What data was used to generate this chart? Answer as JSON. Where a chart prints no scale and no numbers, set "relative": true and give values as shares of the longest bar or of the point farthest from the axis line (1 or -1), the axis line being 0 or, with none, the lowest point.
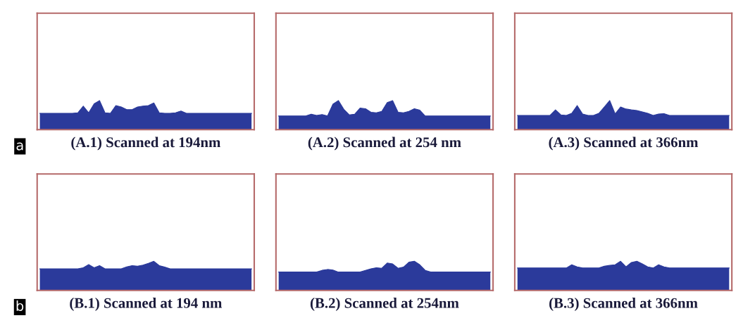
{
  "chart_data": [
    {
      "type": "area",
      "title": "(A.1) Scanned at 194nm",
      "relative": true,
      "tick_labels": false,
      "annotations": [
        "a"
      ],
      "categories": [
        null,
        null,
        null,
        null,
        null,
        null,
        null,
        null,
        null,
        null,
        null,
        null,
        null,
        null,
        null,
        null,
        null,
        null,
        null,
        null,
        null,
        null,
        null,
        null,
        null,
        null,
        null,
        null,
        null,
        null,
        null,
        null,
        null,
        null,
        null,
        null,
        null,
        null,
        null,
        null
      ],
      "series": [
        {
          "color": "#2b3a9b",
          "values": [
            0.56,
            0.56,
            0.56,
            0.56,
            0.56,
            0.56,
            0.56,
            0.58,
            0.81,
            0.58,
            0.89,
            1,
            0.58,
            0.56,
            0.83,
            0.78,
            0.69,
            0.69,
            0.78,
            0.81,
            0.83,
            0.92,
            0.58,
            0.56,
            0.56,
            0.58,
            0.64,
            0.56,
            0.56,
            0.56,
            0.56,
            0.56,
            0.56,
            0.56,
            0.56,
            0.56,
            0.56,
            0.56,
            0.56,
            0.56
          ]
        }
      ]
    },
    {
      "type": "area",
      "title": "(A.2) Scanned at 254 nm",
      "relative": true,
      "tick_labels": false,
      "categories": [
        null,
        null,
        null,
        null,
        null,
        null,
        null,
        null,
        null,
        null,
        null,
        null,
        null,
        null,
        null,
        null,
        null,
        null,
        null,
        null,
        null,
        null,
        null,
        null,
        null,
        null,
        null,
        null,
        null,
        null,
        null,
        null,
        null,
        null,
        null,
        null,
        null,
        null,
        null,
        null
      ],
      "series": [
        {
          "color": "#2b3a9b",
          "values": [
            0.47,
            0.47,
            0.47,
            0.47,
            0.47,
            0.47,
            0.53,
            0.49,
            0.52,
            0.47,
            0.88,
            1,
            0.7,
            0.51,
            0.53,
            0.74,
            0.72,
            0.6,
            0.58,
            0.63,
            0.93,
            1,
            0.6,
            0.58,
            0.63,
            0.72,
            0.67,
            0.47,
            0.47,
            0.47,
            0.47,
            0.47,
            0.47,
            0.47,
            0.47,
            0.47,
            0.47,
            0.47,
            0.47,
            0.47
          ]
        }
      ]
    },
    {
      "type": "area",
      "title": "(A.3) Scanned at 366nm",
      "relative": true,
      "tick_labels": false,
      "categories": [
        null,
        null,
        null,
        null,
        null,
        null,
        null,
        null,
        null,
        null,
        null,
        null,
        null,
        null,
        null,
        null,
        null,
        null,
        null,
        null,
        null,
        null,
        null,
        null,
        null,
        null,
        null,
        null,
        null,
        null,
        null,
        null,
        null,
        null,
        null,
        null,
        null,
        null,
        null,
        null
      ],
      "series": [
        {
          "color": "#2b3a9b",
          "values": [
            0.49,
            0.49,
            0.49,
            0.49,
            0.49,
            0.49,
            0.49,
            0.68,
            0.51,
            0.49,
            0.56,
            0.83,
            0.54,
            0.49,
            0.49,
            0.56,
            0.78,
            1,
            0.54,
            0.78,
            0.71,
            0.68,
            0.66,
            0.61,
            0.56,
            0.49,
            0.54,
            0.55,
            0.49,
            0.49,
            0.49,
            0.49,
            0.49,
            0.49,
            0.49,
            0.49,
            0.49,
            0.49,
            0.49,
            0.49
          ]
        }
      ]
    },
    {
      "type": "area",
      "title": "(B.1) Scanned at 194 nm",
      "relative": true,
      "tick_labels": false,
      "annotations": [
        "b"
      ],
      "categories": [
        null,
        null,
        null,
        null,
        null,
        null,
        null,
        null,
        null,
        null,
        null,
        null,
        null,
        null,
        null,
        null,
        null,
        null,
        null,
        null,
        null,
        null,
        null,
        null,
        null,
        null,
        null,
        null,
        null,
        null,
        null,
        null,
        null,
        null,
        null,
        null,
        null,
        null,
        null,
        null
      ],
      "series": [
        {
          "color": "#2b3a9b",
          "values": [
            0.74,
            0.74,
            0.74,
            0.74,
            0.74,
            0.74,
            0.74,
            0.74,
            0.78,
            0.89,
            0.78,
            0.85,
            0.74,
            0.74,
            0.74,
            0.74,
            0.81,
            0.85,
            0.83,
            0.87,
            0.93,
            1,
            0.85,
            0.8,
            0.74,
            0.74,
            0.74,
            0.74,
            0.74,
            0.74,
            0.74,
            0.74,
            0.74,
            0.74,
            0.74,
            0.74,
            0.74,
            0.74,
            0.74,
            0.74
          ]
        }
      ]
    },
    {
      "type": "area",
      "title": "(B.2) Scanned at 254nm",
      "relative": true,
      "tick_labels": false,
      "categories": [
        null,
        null,
        null,
        null,
        null,
        null,
        null,
        null,
        null,
        null,
        null,
        null,
        null,
        null,
        null,
        null,
        null,
        null,
        null,
        null,
        null,
        null,
        null,
        null,
        null,
        null,
        null,
        null,
        null,
        null,
        null,
        null,
        null,
        null,
        null,
        null,
        null,
        null,
        null,
        null
      ],
      "series": [
        {
          "color": "#2b3a9b",
          "values": [
            0.63,
            0.63,
            0.63,
            0.63,
            0.63,
            0.63,
            0.63,
            0.63,
            0.69,
            0.72,
            0.7,
            0.63,
            0.63,
            0.63,
            0.63,
            0.63,
            0.69,
            0.74,
            0.78,
            0.76,
            0.94,
            0.91,
            0.76,
            0.8,
            0.97,
            1,
            0.88,
            0.69,
            0.63,
            0.63,
            0.63,
            0.63,
            0.63,
            0.63,
            0.63,
            0.63,
            0.63,
            0.63,
            0.63,
            0.63
          ]
        }
      ]
    },
    {
      "type": "area",
      "title": "(B.3) Scanned at 366nm",
      "relative": true,
      "tick_labels": false,
      "categories": [
        null,
        null,
        null,
        null,
        null,
        null,
        null,
        null,
        null,
        null,
        null,
        null,
        null,
        null,
        null,
        null,
        null,
        null,
        null,
        null,
        null,
        null,
        null,
        null,
        null,
        null,
        null,
        null,
        null,
        null,
        null,
        null,
        null,
        null,
        null,
        null,
        null,
        null,
        null,
        null
      ],
      "series": [
        {
          "color": "#2b3a9b",
          "values": [
            0.77,
            0.77,
            0.77,
            0.77,
            0.77,
            0.77,
            0.77,
            0.77,
            0.77,
            0.77,
            0.88,
            0.81,
            0.77,
            0.77,
            0.77,
            0.77,
            0.83,
            0.86,
            0.88,
            1,
            0.81,
            0.96,
            1,
            0.91,
            0.81,
            0.77,
            0.88,
            0.81,
            0.77,
            0.77,
            0.77,
            0.77,
            0.77,
            0.77,
            0.77,
            0.77,
            0.77,
            0.77,
            0.77,
            0.77
          ]
        }
      ]
    }
  ]
}
